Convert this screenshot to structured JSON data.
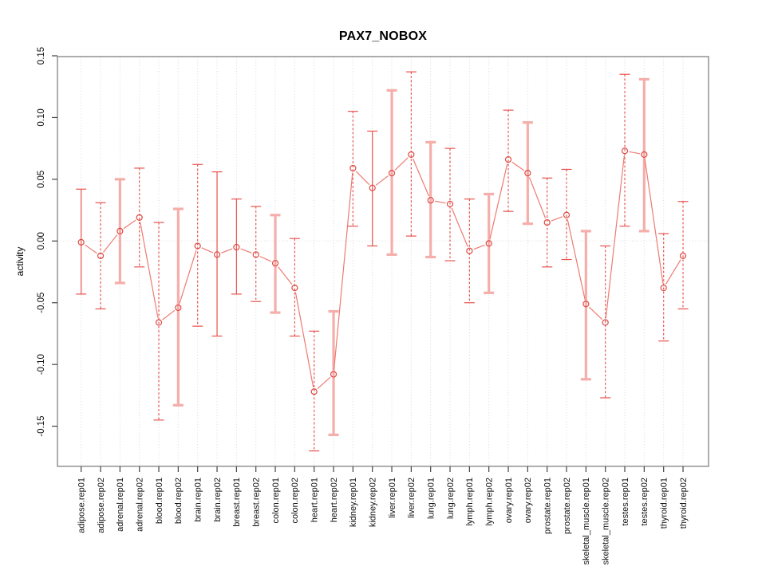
{
  "page": {
    "background": "#ffffff"
  },
  "chart_data": {
    "type": "line",
    "title": "PAX7_NOBOX",
    "ylabel": "activity",
    "xlabel": "",
    "legend": "none",
    "grid": "vertical-dotted-per-category-and-horizontal-dotted-at-zero",
    "point_marker": "open-circle",
    "ylim": [
      -0.183,
      0.149
    ],
    "yticks": [
      -0.15,
      -0.1,
      -0.05,
      0.0,
      0.05,
      0.1,
      0.15
    ],
    "colors": {
      "line": "#ee7b72",
      "marker": "#dd4a44",
      "errorbar_thin": "#e8534e",
      "errorbar_thick": "#f5aeaa",
      "grid": "#d9d9d9",
      "axis_box": "#777777",
      "tick": "#444444",
      "tick_text": "#111111"
    },
    "categories": [
      "adipose.rep01",
      "adipose.rep02",
      "adrenal.rep01",
      "adrenal.rep02",
      "blood.rep01",
      "blood.rep02",
      "brain.rep01",
      "brain.rep02",
      "breast.rep01",
      "breast.rep02",
      "colon.rep01",
      "colon.rep02",
      "heart.rep01",
      "heart.rep02",
      "kidney.rep01",
      "kidney.rep02",
      "liver.rep01",
      "liver.rep02",
      "lung.rep01",
      "lung.rep02",
      "lymph.rep01",
      "lymph.rep02",
      "ovary.rep01",
      "ovary.rep02",
      "prostate.rep01",
      "prostate.rep02",
      "skeletal_muscle.rep01",
      "skeletal_muscle.rep02",
      "testes.rep01",
      "testes.rep02",
      "thyroid.rep01",
      "thyroid.rep02"
    ],
    "series": [
      {
        "name": "activity",
        "values": [
          -0.001,
          -0.012,
          0.008,
          0.019,
          -0.066,
          -0.054,
          -0.004,
          -0.011,
          -0.005,
          -0.011,
          -0.018,
          -0.038,
          -0.122,
          -0.108,
          0.059,
          0.043,
          0.055,
          0.07,
          0.033,
          0.03,
          -0.008,
          -0.002,
          0.066,
          0.055,
          0.015,
          0.021,
          -0.051,
          -0.066,
          0.073,
          0.07,
          -0.038,
          -0.012
        ],
        "err_low": [
          -0.043,
          -0.055,
          -0.034,
          -0.021,
          -0.145,
          -0.133,
          -0.069,
          -0.077,
          -0.043,
          -0.049,
          -0.058,
          -0.077,
          -0.17,
          -0.157,
          0.012,
          -0.004,
          -0.011,
          0.004,
          -0.013,
          -0.016,
          -0.05,
          -0.042,
          0.024,
          0.014,
          -0.021,
          -0.015,
          -0.112,
          -0.127,
          0.012,
          0.008,
          -0.081,
          -0.055
        ],
        "err_high": [
          0.042,
          0.031,
          0.05,
          0.059,
          0.015,
          0.026,
          0.062,
          0.056,
          0.034,
          0.028,
          0.021,
          0.002,
          -0.073,
          -0.057,
          0.105,
          0.089,
          0.122,
          0.137,
          0.08,
          0.075,
          0.034,
          0.038,
          0.106,
          0.096,
          0.051,
          0.058,
          0.008,
          -0.004,
          0.135,
          0.131,
          0.006,
          0.032
        ],
        "bar_styles": [
          "solid",
          "dashed",
          "thick",
          "dashed",
          "dashed",
          "thick",
          "dashed",
          "solid",
          "solid",
          "dashed",
          "thick",
          "dashed",
          "dashed",
          "thick",
          "dashed",
          "solid",
          "thick",
          "dashed",
          "thick",
          "dashed",
          "dashed",
          "thick",
          "dashed",
          "thick",
          "dashed",
          "dashed",
          "thick",
          "dashed",
          "dashed",
          "thick",
          "dashed",
          "dashed"
        ]
      }
    ]
  }
}
